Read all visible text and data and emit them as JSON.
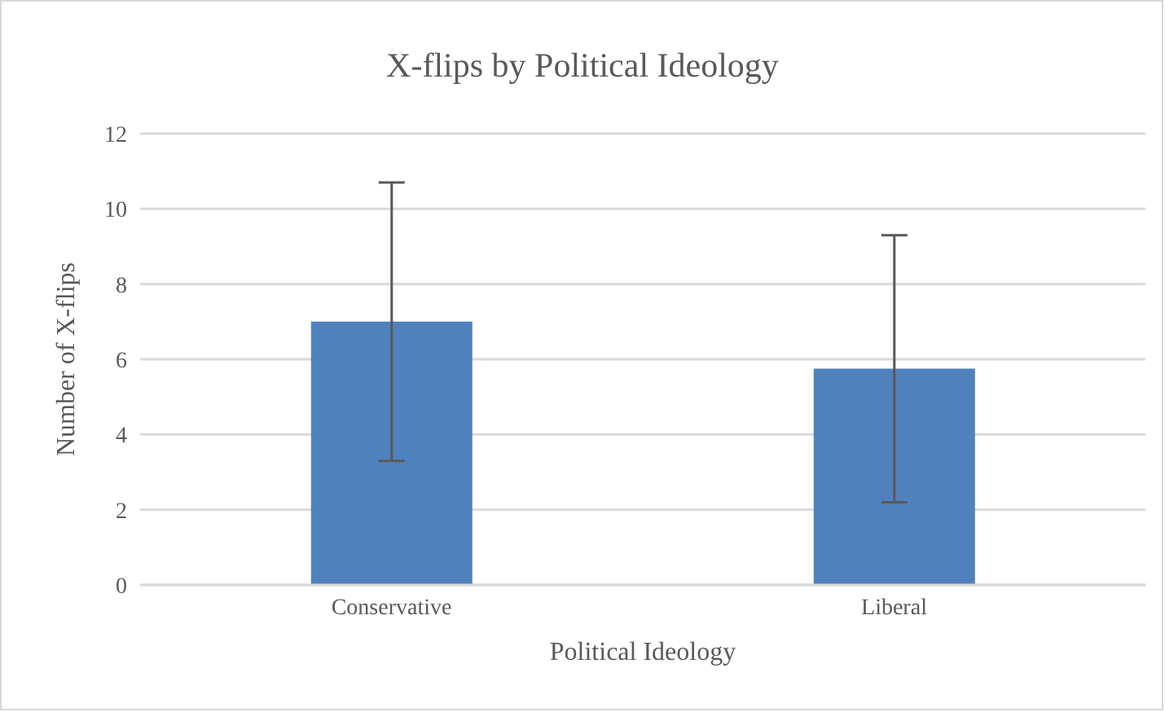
{
  "chart_data": {
    "type": "bar",
    "title": "X-flips by Political Ideology",
    "xlabel": "Political Ideology",
    "ylabel": "Number of X-flips",
    "categories": [
      "Conservative",
      "Liberal"
    ],
    "values": [
      7.0,
      5.75
    ],
    "errors": [
      3.7,
      3.55
    ],
    "color": "#4f81bd",
    "ylim": [
      0,
      12
    ],
    "yticks": [
      0,
      2,
      4,
      6,
      8,
      10,
      12
    ],
    "grid": "y",
    "legend": false
  }
}
